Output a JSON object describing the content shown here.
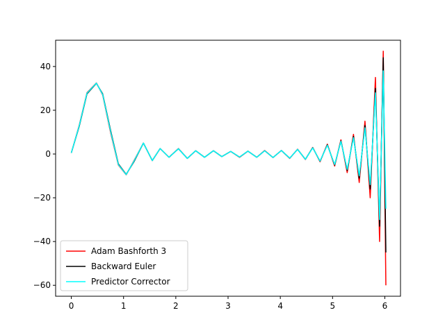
{
  "chart_data": {
    "type": "line",
    "title": "",
    "xlabel": "",
    "ylabel": "",
    "xlim": [
      -0.3,
      6.3
    ],
    "ylim": [
      -65,
      52
    ],
    "xticks": [
      0,
      1,
      2,
      3,
      4,
      5,
      6
    ],
    "yticks": [
      -60,
      -40,
      -20,
      0,
      20,
      40
    ],
    "xtick_labels": [
      "0",
      "1",
      "2",
      "3",
      "4",
      "5",
      "6"
    ],
    "ytick_labels": [
      "−60",
      "−40",
      "−20",
      "0",
      "20",
      "40"
    ],
    "grid": false,
    "legend_position": "lower-left",
    "series": [
      {
        "name": "Adam Bashforth 3",
        "color": "#ff0000",
        "x": [
          0.0,
          0.15,
          0.3,
          0.48,
          0.6,
          0.75,
          0.9,
          1.05,
          1.2,
          1.38,
          1.55,
          1.7,
          1.87,
          2.05,
          2.22,
          2.38,
          2.55,
          2.72,
          2.88,
          3.05,
          3.22,
          3.38,
          3.55,
          3.7,
          3.86,
          4.02,
          4.18,
          4.33,
          4.48,
          4.62,
          4.76,
          4.9,
          5.04,
          5.16,
          5.28,
          5.4,
          5.51,
          5.62,
          5.72,
          5.82,
          5.9,
          5.97,
          6.02
        ],
        "y": [
          0.5,
          13,
          28,
          32.5,
          27,
          10,
          -5,
          -9.5,
          -3,
          5,
          -3,
          2.5,
          -1.5,
          2.5,
          -2,
          1.5,
          -1.5,
          1.5,
          -1.2,
          1.2,
          -1.5,
          1.3,
          -1.5,
          1.6,
          -1.6,
          1.6,
          -2,
          2.2,
          -2.5,
          3,
          -3.5,
          4.5,
          -5.5,
          6.5,
          -8.5,
          9,
          -13,
          15,
          -20,
          35,
          -40,
          47,
          -60
        ]
      },
      {
        "name": "Backward Euler",
        "color": "#000000",
        "x": [
          0.0,
          0.15,
          0.3,
          0.48,
          0.6,
          0.75,
          0.9,
          1.05,
          1.2,
          1.38,
          1.55,
          1.7,
          1.87,
          2.05,
          2.22,
          2.38,
          2.55,
          2.72,
          2.88,
          3.05,
          3.22,
          3.38,
          3.55,
          3.7,
          3.86,
          4.02,
          4.18,
          4.33,
          4.48,
          4.62,
          4.76,
          4.9,
          5.04,
          5.16,
          5.28,
          5.4,
          5.51,
          5.62,
          5.72,
          5.82,
          5.9,
          5.97,
          6.02
        ],
        "y": [
          0.5,
          12.5,
          27.5,
          32.3,
          27.5,
          11,
          -4.5,
          -9.3,
          -3.5,
          5,
          -3,
          2.5,
          -1.5,
          2.4,
          -2,
          1.5,
          -1.5,
          1.5,
          -1.2,
          1.2,
          -1.4,
          1.3,
          -1.5,
          1.5,
          -1.6,
          1.6,
          -1.9,
          2.1,
          -2.4,
          2.9,
          -3.3,
          4.2,
          -5,
          6,
          -7.5,
          8,
          -11,
          13,
          -16,
          30,
          -33,
          44,
          -45
        ]
      },
      {
        "name": "Predictor Corrector",
        "color": "#00ffff",
        "x": [
          0.0,
          0.15,
          0.3,
          0.48,
          0.6,
          0.75,
          0.9,
          1.05,
          1.2,
          1.38,
          1.55,
          1.7,
          1.87,
          2.05,
          2.22,
          2.38,
          2.55,
          2.72,
          2.88,
          3.05,
          3.22,
          3.38,
          3.55,
          3.7,
          3.86,
          4.02,
          4.18,
          4.33,
          4.48,
          4.62,
          4.76,
          4.9,
          5.04,
          5.16,
          5.28,
          5.4,
          5.51,
          5.62,
          5.72,
          5.82,
          5.9,
          5.97,
          6.02
        ],
        "y": [
          0.5,
          12.8,
          27.8,
          32.4,
          27.2,
          10.5,
          -4.8,
          -9.4,
          -3.2,
          5,
          -3,
          2.5,
          -1.5,
          2.4,
          -2,
          1.5,
          -1.5,
          1.5,
          -1.2,
          1.2,
          -1.4,
          1.3,
          -1.5,
          1.5,
          -1.6,
          1.6,
          -1.9,
          2.1,
          -2.4,
          2.8,
          -3.2,
          4,
          -4.8,
          5.8,
          -7,
          7.5,
          -10,
          12,
          -14,
          28,
          -30,
          38,
          -25
        ]
      }
    ]
  }
}
